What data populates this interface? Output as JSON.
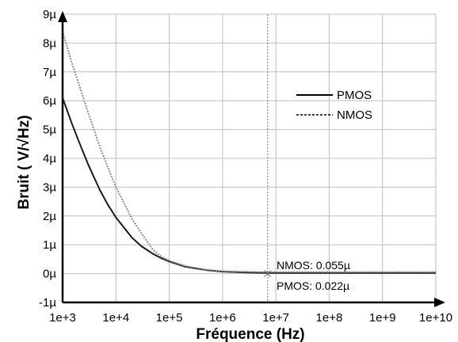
{
  "chart_data": {
    "type": "line",
    "title": "",
    "xlabel": "Fréquence (Hz)",
    "ylabel": "Bruit ( V/√Hz)",
    "x_scale": "log",
    "xlim": [
      1000,
      10000000000
    ],
    "ylim": [
      -1,
      9
    ],
    "x_ticks": [
      "1e+3",
      "1e+4",
      "1e+5",
      "1e+6",
      "1e+7",
      "1e+8",
      "1e+9",
      "1e+10"
    ],
    "y_ticks": [
      "-1µ",
      "0µ",
      "1µ",
      "2µ",
      "3µ",
      "4µ",
      "5µ",
      "6µ",
      "7µ",
      "8µ",
      "9µ"
    ],
    "y_unit": "µV/√Hz",
    "grid": true,
    "legend_position": "top-right",
    "series": [
      {
        "name": "PMOS",
        "style": "solid",
        "color": "#1a1a1a",
        "x": [
          1000,
          1500,
          2000,
          3000,
          5000,
          7000,
          10000,
          20000,
          30000,
          50000,
          70000,
          100000,
          200000,
          500000,
          1000000,
          3000000,
          7000000,
          10000000000
        ],
        "y": [
          6.1,
          5.2,
          4.6,
          3.8,
          2.9,
          2.4,
          1.95,
          1.25,
          0.95,
          0.68,
          0.54,
          0.42,
          0.24,
          0.12,
          0.07,
          0.035,
          0.022,
          0.022
        ]
      },
      {
        "name": "NMOS",
        "style": "dotted",
        "color": "#8c8c8c",
        "x": [
          1000,
          1500,
          2000,
          3000,
          5000,
          7000,
          10000,
          20000,
          30000,
          50000,
          70000,
          100000,
          200000,
          500000,
          1000000,
          3000000,
          7000000,
          10000000000
        ],
        "y": [
          8.4,
          7.3,
          6.6,
          5.6,
          4.4,
          3.7,
          3.0,
          1.9,
          1.4,
          0.82,
          0.6,
          0.45,
          0.26,
          0.13,
          0.08,
          0.06,
          0.055,
          0.055
        ]
      }
    ],
    "cursor": {
      "x": 7000000
    },
    "annotations": [
      {
        "text": "NMOS: 0.055µ"
      },
      {
        "text": "PMOS: 0.022µ"
      }
    ]
  }
}
